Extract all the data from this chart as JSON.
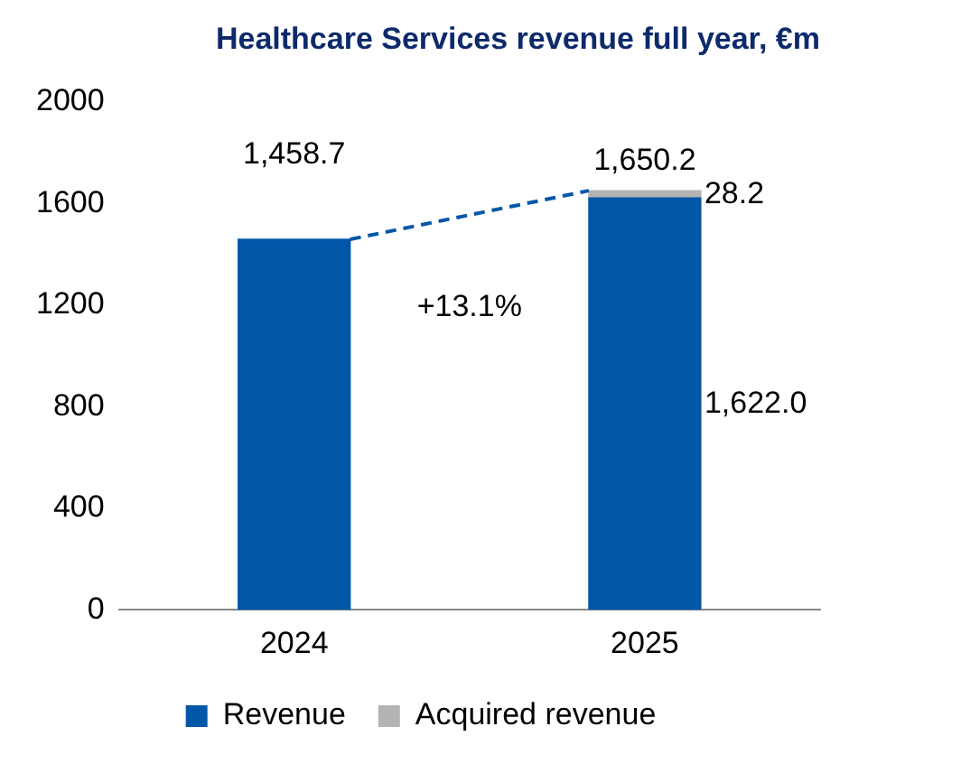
{
  "chart_data": {
    "type": "bar",
    "title": "Healthcare Services revenue full year, €m",
    "categories": [
      "2024",
      "2025"
    ],
    "stacked": true,
    "series": [
      {
        "name": "Revenue",
        "color": "#0057a8",
        "values": [
          1458.7,
          1622.0
        ]
      },
      {
        "name": "Acquired revenue",
        "color": "#b4b4b4",
        "values": [
          null,
          28.2
        ]
      }
    ],
    "totals": [
      "1,458.7",
      "1,650.2"
    ],
    "annotations": [
      "+13.1%",
      {
        "text": "28.2",
        "x": "2025",
        "y": 1636
      },
      "1,622.0"
    ],
    "ylim": [
      0,
      2000
    ],
    "yticks": [
      0,
      400,
      800,
      1200,
      1600,
      2000
    ],
    "grid": false,
    "legend": "bottom"
  }
}
